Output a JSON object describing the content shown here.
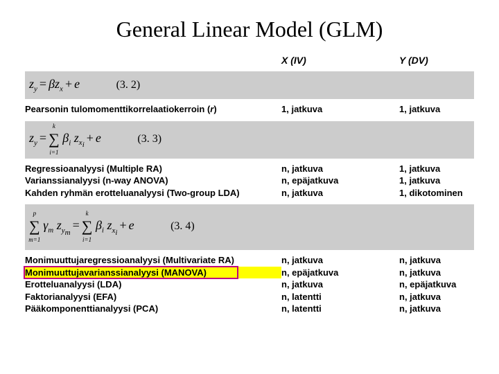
{
  "title": "General Linear Model (GLM)",
  "headers": {
    "col1": "",
    "col2": "X (IV)",
    "col3": "Y (DV)"
  },
  "equations": {
    "eq1_num": "(3. 2)",
    "eq2_num": "(3. 3)",
    "eq3_num": "(3. 4)"
  },
  "section1": {
    "rows": [
      {
        "label": "Pearsonin tulomomenttikorrelaatiokerroin (r)",
        "x": "1, jatkuva",
        "y": "1, jatkuva"
      }
    ]
  },
  "section2": {
    "rows": [
      {
        "label": "Regressioanalyysi (Multiple RA)",
        "x": "n, jatkuva",
        "y": "1, jatkuva"
      },
      {
        "label": "Varianssianalyysi (n-way ANOVA)",
        "x": "n, epäjatkuva",
        "y": "1, jatkuva"
      },
      {
        "label": "Kahden ryhmän erotteluanalyysi (Two-group LDA)",
        "x": "n, jatkuva",
        "y": "1, dikotominen"
      }
    ]
  },
  "section3": {
    "rows": [
      {
        "label": "Monimuuttujaregressioanalyysi (Multivariate RA)",
        "x": "n, jatkuva",
        "y": "n, jatkuva",
        "hl": false
      },
      {
        "label": "Monimuuttujavarianssianalyysi (MANOVA)",
        "x": "n, epäjatkuva",
        "y": "n, jatkuva",
        "hl": true
      },
      {
        "label": "Erotteluanalyysi (LDA)",
        "x": "n, jatkuva",
        "y": "n, epäjatkuva",
        "hl": false
      },
      {
        "label": "Faktorianalyysi (EFA)",
        "x": "n, latentti",
        "y": "n, jatkuva",
        "hl": false
      },
      {
        "label": "Pääkomponenttianalyysi (PCA)",
        "x": "n, latentti",
        "y": "n, jatkuva",
        "hl": false
      }
    ]
  },
  "style": {
    "highlight_color": "#ffff00",
    "box_color": "#c00080",
    "equation_bg": "#cccccc",
    "title_fontsize": 32,
    "body_fontsize": 13,
    "grid_cols": [
      370,
      170,
      160
    ]
  }
}
